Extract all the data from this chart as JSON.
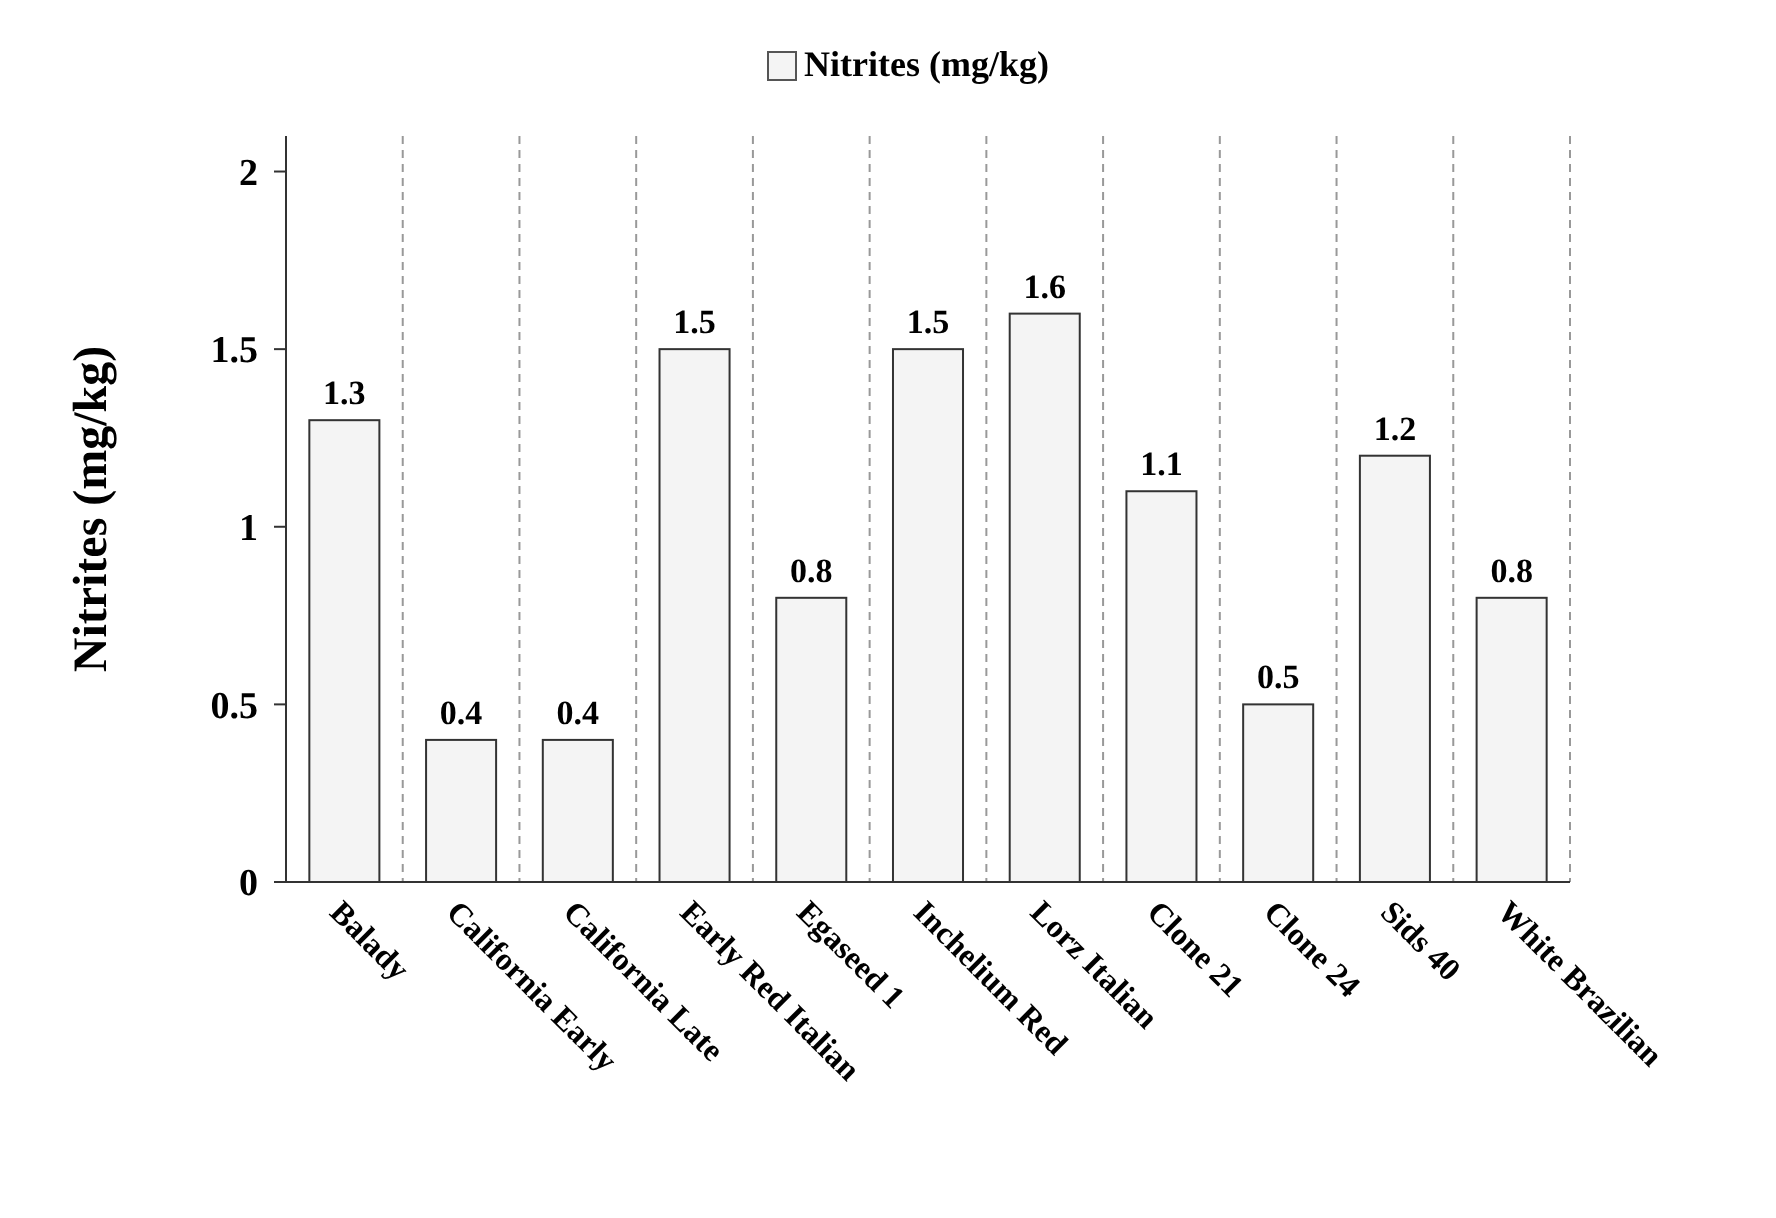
{
  "chart_data": {
    "type": "bar",
    "ylabel": "Nitrites (mg/kg)",
    "categories": [
      "Balady",
      "California Early",
      "California Late",
      "Early Red Italian",
      "Egaseed 1",
      "Inchelium Red",
      "Lorz Italian",
      "Clone 21",
      "Clone 24",
      "Sids 40",
      "White Brazilian"
    ],
    "series": [
      {
        "name": "Nitrites (mg/kg)",
        "color": "#f4f4f4",
        "values": [
          1.3,
          0.4,
          0.4,
          1.5,
          0.8,
          1.5,
          1.6,
          1.1,
          0.5,
          1.2,
          0.8
        ]
      }
    ],
    "ylim": [
      0,
      2.1
    ],
    "yticks": [
      0,
      0.5,
      1,
      1.5,
      2
    ],
    "grid": "x",
    "legend": "top",
    "data_labels": true
  }
}
